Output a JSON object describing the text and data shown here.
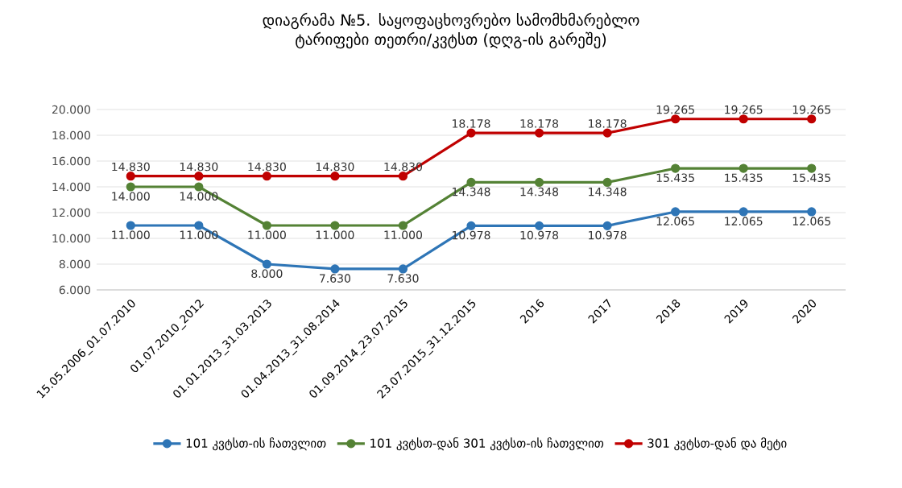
{
  "chart_data": {
    "type": "line",
    "title": "დიაგრამა №5. საყოფაცხოვრებო სამომხმარებლო ტარიფები თეთრი/კვტსთ (დღგ-ის გარეშე)",
    "categories": [
      "15.05.2006_01.07.2010",
      "01.07.2010_2012",
      "01.01.2013_31.03.2013",
      "01.04.2013_31.08.2014",
      "01.09.2014_23.07.2015",
      "23.07.2015_31.12.2015",
      "2016",
      "2017",
      "2018",
      "2019",
      "2020"
    ],
    "series": [
      {
        "name": "101 კვტსთ-ის ჩათვლით",
        "color": "#2e75b6",
        "values": [
          11,
          11,
          8,
          7.63,
          7.63,
          10.978,
          10.978,
          10.978,
          12.065,
          12.065,
          12.065
        ],
        "value_labels": [
          "11.000",
          "11.000",
          "8.000",
          "7.630",
          "7.630",
          "10.978",
          "10.978",
          "10.978",
          "12.065",
          "12.065",
          "12.065"
        ]
      },
      {
        "name": "101 კვტსთ-დან 301 კვტსთ-ის ჩათვლით",
        "color": "#548235",
        "values": [
          14,
          14,
          11,
          11,
          11,
          14.348,
          14.348,
          14.348,
          15.435,
          15.435,
          15.435
        ],
        "value_labels": [
          "14.000",
          "14.000",
          "11.000",
          "11.000",
          "11.000",
          "14.348",
          "14.348",
          "14.348",
          "15.435",
          "15.435",
          "15.435"
        ]
      },
      {
        "name": "301 კვტსთ-დან და მეტი",
        "color": "#c00000",
        "values": [
          14.83,
          14.83,
          14.83,
          14.83,
          14.83,
          18.178,
          18.178,
          18.178,
          19.265,
          19.265,
          19.265
        ],
        "value_labels": [
          "14.830",
          "14.830",
          "14.830",
          "14.830",
          "14.830",
          "18.178",
          "18.178",
          "18.178",
          "19.265",
          "19.265",
          "19.265"
        ]
      }
    ],
    "ylim": [
      6,
      20
    ],
    "yticks": [
      {
        "value": 6,
        "label": "6.000"
      },
      {
        "value": 8,
        "label": "8.000"
      },
      {
        "value": 10,
        "label": "10.000"
      },
      {
        "value": 12,
        "label": "12.000"
      },
      {
        "value": 14,
        "label": "14.000"
      },
      {
        "value": 16,
        "label": "16.000"
      },
      {
        "value": 18,
        "label": "18.000"
      },
      {
        "value": 20,
        "label": "20.000"
      }
    ],
    "grid": "y",
    "legend": "bottom",
    "marker": "circle",
    "line_style": "solid"
  }
}
